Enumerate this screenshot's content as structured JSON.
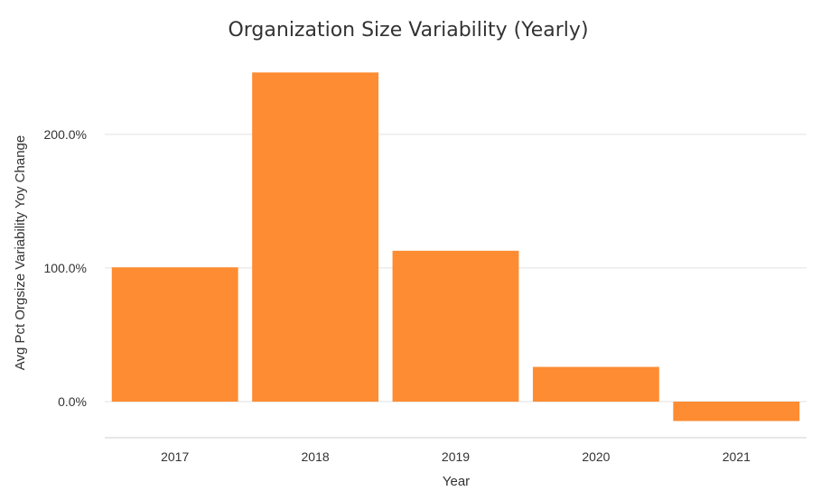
{
  "chart_data": {
    "type": "bar",
    "title": "Organization Size Variability (Yearly)",
    "xlabel": "Year",
    "ylabel": "Avg Pct Orgsize Variability Yoy Change",
    "categories": [
      "2017",
      "2018",
      "2019",
      "2020",
      "2021"
    ],
    "values": [
      100.5,
      246.3,
      112.9,
      26.0,
      -14.5
    ],
    "ylim": [
      -27,
      260
    ],
    "yticks": [
      0,
      100,
      200
    ],
    "ytick_labels": [
      "0.0%",
      "100.0%",
      "200.0%"
    ],
    "grid": true,
    "bar_color": "#fd8c32"
  }
}
